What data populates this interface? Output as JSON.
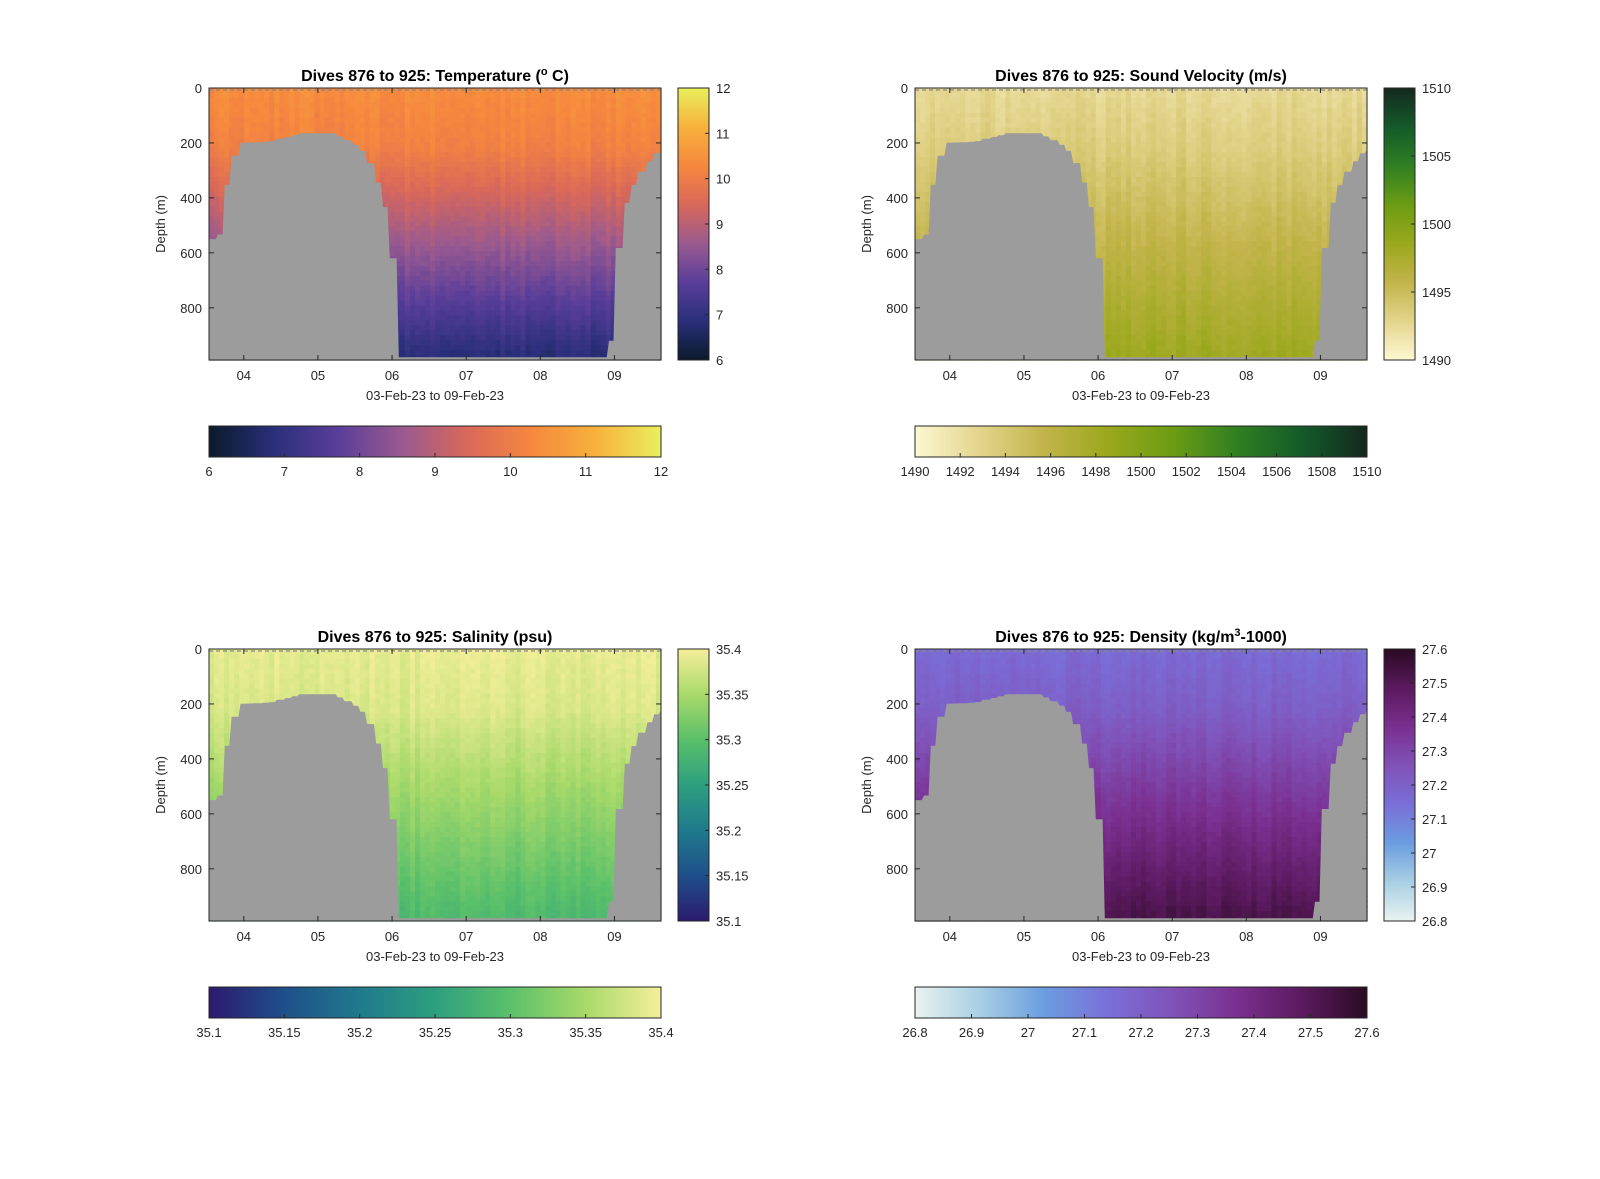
{
  "figure": {
    "x_tick_labels": [
      "04",
      "05",
      "06",
      "07",
      "08",
      "09"
    ],
    "x_label": "03-Feb-23 to 09-Feb-23",
    "y_label": "Depth (m)",
    "y_tick_labels": [
      "0",
      "200",
      "400",
      "600",
      "800"
    ]
  },
  "chart_data": [
    {
      "type": "heatmap",
      "title": "Dives 876 to 925: Temperature (° C)",
      "title_parts": [
        "Dives 876 to 925: Temperature (",
        "o",
        " C)"
      ],
      "xlabel": "03-Feb-23 to 09-Feb-23",
      "ylabel": "Depth (m)",
      "x_range": [
        "03-Feb-23",
        "09-Feb-23"
      ],
      "x_ticks": [
        "04",
        "05",
        "06",
        "07",
        "08",
        "09"
      ],
      "y_range": [
        0,
        990
      ],
      "y_ticks": [
        0,
        200,
        400,
        600,
        800
      ],
      "y_reversed": true,
      "color_range": [
        6,
        12
      ],
      "colorbar_right_ticks": [
        "6",
        "7",
        "8",
        "9",
        "10",
        "11",
        "12"
      ],
      "colorbar_bottom_ticks": [
        "6",
        "7",
        "8",
        "9",
        "10",
        "11",
        "12"
      ],
      "colormap": [
        "#0b1a2b",
        "#2a2f7a",
        "#5a3e9a",
        "#9a5a8f",
        "#d9685a",
        "#f6883e",
        "#f7b23c",
        "#e9f05c"
      ],
      "values": {
        "surface": 10.4,
        "deep_edge": 9.7,
        "bottom_inshore": 6.9
      },
      "grid": false
    },
    {
      "type": "heatmap",
      "title": "Dives 876 to 925: Sound Velocity (m/s)",
      "title_parts": [
        "Dives 876 to 925: Sound Velocity (m/s)"
      ],
      "xlabel": "03-Feb-23 to 09-Feb-23",
      "ylabel": "Depth (m)",
      "x_range": [
        "03-Feb-23",
        "09-Feb-23"
      ],
      "x_ticks": [
        "04",
        "05",
        "06",
        "07",
        "08",
        "09"
      ],
      "y_range": [
        0,
        990
      ],
      "y_ticks": [
        0,
        200,
        400,
        600,
        800
      ],
      "y_reversed": true,
      "color_range": [
        1490,
        1510
      ],
      "colorbar_right_ticks": [
        "1490",
        "1495",
        "1500",
        "1505",
        "1510"
      ],
      "colorbar_bottom_ticks": [
        "1490",
        "1492",
        "1494",
        "1496",
        "1498",
        "1500",
        "1502",
        "1504",
        "1506",
        "1508",
        "1510"
      ],
      "colormap": [
        "#fdf8d2",
        "#e3d48c",
        "#c2b44a",
        "#9aa81c",
        "#6b9c14",
        "#2f7f22",
        "#145a2a",
        "#14281f"
      ],
      "values": {
        "surface": 1492.5,
        "deep_edge": 1495.0,
        "bottom_inshore": 1498.2
      },
      "grid": false
    },
    {
      "type": "heatmap",
      "title": "Dives 876 to 925: Salinity (psu)",
      "title_parts": [
        "Dives 876 to 925: Salinity (psu)"
      ],
      "xlabel": "03-Feb-23 to 09-Feb-23",
      "ylabel": "Depth (m)",
      "x_range": [
        "03-Feb-23",
        "09-Feb-23"
      ],
      "x_ticks": [
        "04",
        "05",
        "06",
        "07",
        "08",
        "09"
      ],
      "y_range": [
        0,
        990
      ],
      "y_ticks": [
        0,
        200,
        400,
        600,
        800
      ],
      "y_reversed": true,
      "color_range": [
        35.1,
        35.4
      ],
      "colorbar_right_ticks": [
        "35.1",
        "35.15",
        "35.2",
        "35.25",
        "35.3",
        "35.35",
        "35.4"
      ],
      "colorbar_bottom_ticks": [
        "35.1",
        "35.15",
        "35.2",
        "35.25",
        "35.3",
        "35.35",
        "35.4"
      ],
      "colormap": [
        "#2c1a6e",
        "#1f4f8a",
        "#1f7a8c",
        "#2e9f7f",
        "#5ac06a",
        "#a9da6a",
        "#f5ef9a"
      ],
      "values": {
        "surface": 35.39,
        "deep_edge": 35.37,
        "bottom_inshore": 35.29
      },
      "grid": false
    },
    {
      "type": "heatmap",
      "title": "Dives 876 to 925: Density (kg/m³-1000)",
      "title_parts": [
        "Dives 876 to 925: Density (kg/m",
        "3",
        "-1000)"
      ],
      "xlabel": "03-Feb-23 to 09-Feb-23",
      "ylabel": "Depth (m)",
      "x_range": [
        "03-Feb-23",
        "09-Feb-23"
      ],
      "x_ticks": [
        "04",
        "05",
        "06",
        "07",
        "08",
        "09"
      ],
      "y_range": [
        0,
        990
      ],
      "y_ticks": [
        0,
        200,
        400,
        600,
        800
      ],
      "y_reversed": true,
      "color_range": [
        26.8,
        27.6
      ],
      "colorbar_right_ticks": [
        "26.8",
        "26.9",
        "27",
        "27.1",
        "27.2",
        "27.3",
        "27.4",
        "27.5",
        "27.6"
      ],
      "colorbar_bottom_ticks": [
        "26.8",
        "26.9",
        "27",
        "27.1",
        "27.2",
        "27.3",
        "27.4",
        "27.5",
        "27.6"
      ],
      "colormap": [
        "#e9f3f0",
        "#a8cfe4",
        "#6b9de0",
        "#7a6fd8",
        "#8052b8",
        "#7a2f8f",
        "#5a1a5e",
        "#2a0a22"
      ],
      "values": {
        "surface": 27.16,
        "deep_edge": 27.28,
        "bottom_inshore": 27.52
      },
      "grid": false
    }
  ]
}
